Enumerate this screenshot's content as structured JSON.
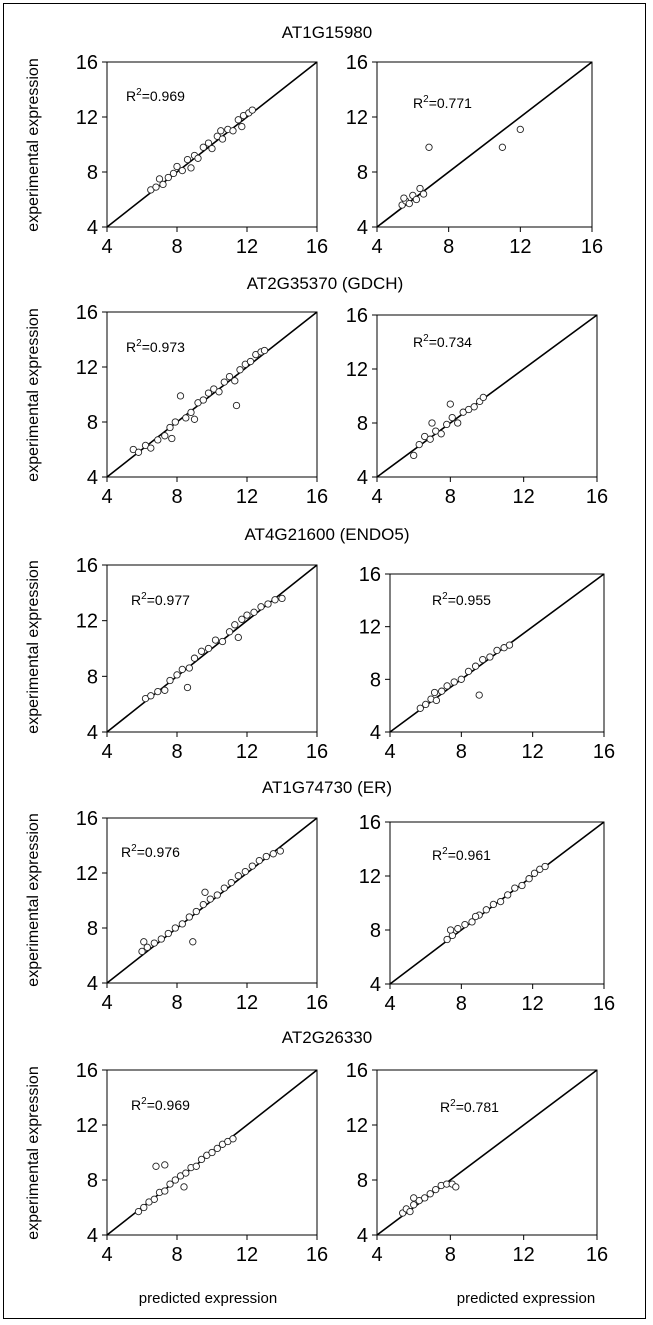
{
  "figure": {
    "ylabel": "experimental expression",
    "xlabel": "predicted expression"
  },
  "chart_data": [
    {
      "type": "scatter",
      "title": "AT1G15980",
      "r2_label": "R",
      "r2_value": "=0.969",
      "xlim": [
        4,
        16
      ],
      "ylim": [
        4,
        16
      ],
      "ticks": [
        "4",
        "8",
        "12",
        "16"
      ],
      "points": [
        [
          6.5,
          6.7
        ],
        [
          6.8,
          6.9
        ],
        [
          7.2,
          7.1
        ],
        [
          7.5,
          7.6
        ],
        [
          7.8,
          7.9
        ],
        [
          8.0,
          8.4
        ],
        [
          8.3,
          8.1
        ],
        [
          8.6,
          8.9
        ],
        [
          9.0,
          9.2
        ],
        [
          9.2,
          9.0
        ],
        [
          9.5,
          9.8
        ],
        [
          9.8,
          10.1
        ],
        [
          10.0,
          9.7
        ],
        [
          10.3,
          10.6
        ],
        [
          10.6,
          10.4
        ],
        [
          10.9,
          11.1
        ],
        [
          11.2,
          11.0
        ],
        [
          11.5,
          11.8
        ],
        [
          11.8,
          12.1
        ],
        [
          12.1,
          12.3
        ],
        [
          12.3,
          12.5
        ],
        [
          7.0,
          7.5
        ],
        [
          8.8,
          8.3
        ],
        [
          10.5,
          11.0
        ],
        [
          11.7,
          11.3
        ]
      ]
    },
    {
      "type": "scatter",
      "title": "",
      "r2_label": "R",
      "r2_value": "=0.771",
      "xlim": [
        4,
        16
      ],
      "ylim": [
        4,
        16
      ],
      "ticks": [
        "4",
        "8",
        "12",
        "16"
      ],
      "points": [
        [
          5.4,
          5.6
        ],
        [
          5.6,
          5.9
        ],
        [
          5.8,
          5.7
        ],
        [
          6.0,
          6.3
        ],
        [
          6.2,
          6.0
        ],
        [
          6.4,
          6.8
        ],
        [
          6.6,
          6.4
        ],
        [
          5.5,
          6.1
        ],
        [
          6.9,
          9.8
        ],
        [
          11.0,
          9.8
        ],
        [
          12.0,
          11.1
        ]
      ]
    },
    {
      "type": "scatter",
      "title": "AT2G35370 (GDCH)",
      "r2_label": "R",
      "r2_value": "=0.973",
      "xlim": [
        4,
        16
      ],
      "ylim": [
        4,
        16
      ],
      "ticks": [
        "4",
        "8",
        "12",
        "16"
      ],
      "points": [
        [
          5.5,
          6.0
        ],
        [
          5.8,
          5.8
        ],
        [
          6.2,
          6.3
        ],
        [
          6.5,
          6.1
        ],
        [
          6.9,
          6.7
        ],
        [
          7.3,
          7.0
        ],
        [
          7.6,
          7.6
        ],
        [
          7.9,
          8.0
        ],
        [
          8.2,
          9.9
        ],
        [
          8.5,
          8.3
        ],
        [
          8.8,
          8.7
        ],
        [
          9.2,
          9.4
        ],
        [
          9.5,
          9.6
        ],
        [
          9.8,
          10.1
        ],
        [
          10.1,
          10.4
        ],
        [
          10.4,
          10.2
        ],
        [
          10.7,
          10.9
        ],
        [
          11.0,
          11.3
        ],
        [
          11.3,
          11.0
        ],
        [
          11.6,
          11.8
        ],
        [
          11.9,
          12.2
        ],
        [
          12.2,
          12.4
        ],
        [
          12.5,
          12.9
        ],
        [
          12.8,
          13.1
        ],
        [
          13.0,
          13.2
        ],
        [
          7.7,
          6.8
        ],
        [
          9.0,
          8.2
        ],
        [
          11.4,
          9.2
        ]
      ]
    },
    {
      "type": "scatter",
      "title": "",
      "r2_label": "R",
      "r2_value": "=0.734",
      "xlim": [
        4,
        16
      ],
      "ylim": [
        4,
        16
      ],
      "ticks": [
        "4",
        "8",
        "12",
        "16"
      ],
      "points": [
        [
          6.0,
          5.6
        ],
        [
          6.3,
          6.4
        ],
        [
          6.6,
          7.0
        ],
        [
          6.9,
          6.8
        ],
        [
          7.2,
          7.4
        ],
        [
          7.5,
          7.2
        ],
        [
          7.8,
          7.9
        ],
        [
          8.1,
          8.4
        ],
        [
          8.4,
          8.0
        ],
        [
          8.7,
          8.8
        ],
        [
          9.0,
          9.0
        ],
        [
          9.3,
          9.2
        ],
        [
          9.6,
          9.6
        ],
        [
          9.8,
          9.9
        ],
        [
          8.0,
          9.4
        ],
        [
          7.0,
          8.0
        ]
      ]
    },
    {
      "type": "scatter",
      "title": "AT4G21600 (ENDO5)",
      "r2_label": "R",
      "r2_value": "=0.977",
      "xlim": [
        4,
        16
      ],
      "ylim": [
        4,
        16
      ],
      "ticks": [
        "4",
        "8",
        "12",
        "16"
      ],
      "points": [
        [
          6.2,
          6.4
        ],
        [
          6.5,
          6.6
        ],
        [
          6.9,
          6.9
        ],
        [
          7.3,
          7.0
        ],
        [
          7.6,
          7.7
        ],
        [
          8.0,
          8.1
        ],
        [
          8.3,
          8.5
        ],
        [
          8.7,
          8.6
        ],
        [
          9.0,
          9.3
        ],
        [
          9.4,
          9.8
        ],
        [
          9.8,
          10.0
        ],
        [
          10.2,
          10.6
        ],
        [
          10.6,
          10.5
        ],
        [
          11.0,
          11.2
        ],
        [
          11.3,
          11.7
        ],
        [
          11.7,
          12.1
        ],
        [
          12.0,
          12.4
        ],
        [
          12.4,
          12.6
        ],
        [
          12.8,
          13.0
        ],
        [
          13.2,
          13.2
        ],
        [
          13.6,
          13.5
        ],
        [
          14.0,
          13.6
        ],
        [
          11.5,
          10.8
        ],
        [
          8.6,
          7.2
        ]
      ]
    },
    {
      "type": "scatter",
      "title": "",
      "r2_label": "R",
      "r2_value": "=0.955",
      "xlim": [
        4,
        16
      ],
      "ylim": [
        4,
        16
      ],
      "ticks": [
        "4",
        "8",
        "12",
        "16"
      ],
      "points": [
        [
          5.7,
          5.8
        ],
        [
          6.0,
          6.1
        ],
        [
          6.3,
          6.5
        ],
        [
          6.6,
          6.4
        ],
        [
          6.9,
          7.1
        ],
        [
          7.2,
          7.5
        ],
        [
          7.6,
          7.8
        ],
        [
          8.0,
          8.0
        ],
        [
          8.4,
          8.6
        ],
        [
          8.8,
          9.0
        ],
        [
          9.2,
          9.5
        ],
        [
          9.6,
          9.7
        ],
        [
          10.0,
          10.2
        ],
        [
          10.4,
          10.4
        ],
        [
          10.7,
          10.6
        ],
        [
          9.0,
          6.8
        ],
        [
          6.5,
          7.0
        ]
      ]
    },
    {
      "type": "scatter",
      "title": "AT1G74730 (ER)",
      "r2_label": "R",
      "r2_value": "=0.976",
      "xlim": [
        4,
        16
      ],
      "ylim": [
        4,
        16
      ],
      "ticks": [
        "4",
        "8",
        "12",
        "16"
      ],
      "points": [
        [
          6.0,
          6.3
        ],
        [
          6.3,
          6.6
        ],
        [
          6.7,
          6.9
        ],
        [
          7.1,
          7.2
        ],
        [
          7.5,
          7.6
        ],
        [
          7.9,
          8.0
        ],
        [
          8.3,
          8.3
        ],
        [
          8.7,
          8.8
        ],
        [
          9.1,
          9.2
        ],
        [
          9.5,
          9.7
        ],
        [
          9.9,
          10.1
        ],
        [
          10.3,
          10.4
        ],
        [
          10.7,
          10.9
        ],
        [
          11.1,
          11.3
        ],
        [
          11.5,
          11.8
        ],
        [
          11.9,
          12.1
        ],
        [
          12.3,
          12.5
        ],
        [
          12.7,
          12.9
        ],
        [
          13.1,
          13.2
        ],
        [
          13.5,
          13.4
        ],
        [
          13.9,
          13.6
        ],
        [
          8.9,
          7.0
        ],
        [
          9.6,
          10.6
        ],
        [
          6.1,
          7.0
        ]
      ]
    },
    {
      "type": "scatter",
      "title": "",
      "r2_label": "R",
      "r2_value": "=0.961",
      "xlim": [
        4,
        16
      ],
      "ylim": [
        4,
        16
      ],
      "ticks": [
        "4",
        "8",
        "12",
        "16"
      ],
      "points": [
        [
          7.2,
          7.3
        ],
        [
          7.5,
          7.6
        ],
        [
          7.8,
          8.1
        ],
        [
          8.2,
          8.4
        ],
        [
          8.6,
          8.6
        ],
        [
          9.0,
          9.1
        ],
        [
          9.4,
          9.5
        ],
        [
          9.8,
          9.9
        ],
        [
          10.2,
          10.1
        ],
        [
          10.6,
          10.6
        ],
        [
          11.0,
          11.1
        ],
        [
          11.4,
          11.3
        ],
        [
          11.8,
          11.8
        ],
        [
          12.1,
          12.2
        ],
        [
          12.4,
          12.5
        ],
        [
          12.7,
          12.7
        ],
        [
          7.4,
          8.0
        ],
        [
          8.8,
          9.0
        ]
      ]
    },
    {
      "type": "scatter",
      "title": "AT2G26330",
      "r2_label": "R",
      "r2_value": "=0.969",
      "xlim": [
        4,
        16
      ],
      "ylim": [
        4,
        16
      ],
      "ticks": [
        "4",
        "8",
        "12",
        "16"
      ],
      "points": [
        [
          5.8,
          5.7
        ],
        [
          6.1,
          6.0
        ],
        [
          6.4,
          6.4
        ],
        [
          6.7,
          6.6
        ],
        [
          7.0,
          7.1
        ],
        [
          7.3,
          7.2
        ],
        [
          7.6,
          7.7
        ],
        [
          7.9,
          8.0
        ],
        [
          8.2,
          8.3
        ],
        [
          8.5,
          8.5
        ],
        [
          8.8,
          8.9
        ],
        [
          9.1,
          9.0
        ],
        [
          9.4,
          9.5
        ],
        [
          9.7,
          9.8
        ],
        [
          10.0,
          10.0
        ],
        [
          10.3,
          10.3
        ],
        [
          10.6,
          10.6
        ],
        [
          10.9,
          10.8
        ],
        [
          11.2,
          11.0
        ],
        [
          6.8,
          9.0
        ],
        [
          7.3,
          9.1
        ],
        [
          8.4,
          7.5
        ]
      ]
    },
    {
      "type": "scatter",
      "title": "",
      "r2_label": "R",
      "r2_value": "=0.781",
      "xlim": [
        4,
        16
      ],
      "ylim": [
        4,
        16
      ],
      "ticks": [
        "4",
        "8",
        "12",
        "16"
      ],
      "points": [
        [
          5.4,
          5.6
        ],
        [
          5.6,
          5.9
        ],
        [
          5.8,
          5.7
        ],
        [
          6.0,
          6.2
        ],
        [
          6.3,
          6.5
        ],
        [
          6.6,
          6.7
        ],
        [
          6.9,
          7.0
        ],
        [
          7.2,
          7.3
        ],
        [
          7.5,
          7.6
        ],
        [
          7.8,
          7.7
        ],
        [
          8.1,
          7.7
        ],
        [
          8.3,
          7.5
        ],
        [
          6.0,
          6.7
        ]
      ]
    }
  ]
}
